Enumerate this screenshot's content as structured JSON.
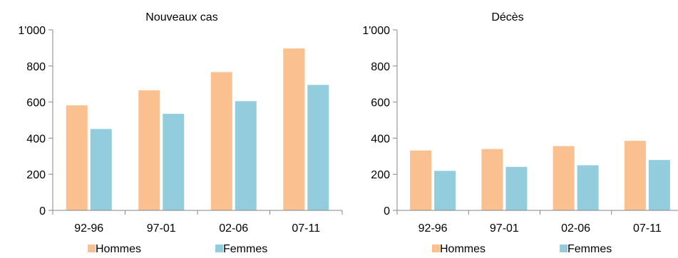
{
  "chart_data": [
    {
      "type": "bar",
      "title": "Nouveaux cas",
      "categories": [
        "92-96",
        "97-01",
        "02-06",
        "07-11"
      ],
      "series": [
        {
          "name": "Hommes",
          "values": [
            582,
            665,
            766,
            897
          ]
        },
        {
          "name": "Femmes",
          "values": [
            451,
            535,
            605,
            695
          ]
        }
      ],
      "ylim": [
        0,
        1000
      ],
      "yticks": [
        "0",
        "200",
        "400",
        "600",
        "800",
        "1'000"
      ],
      "colors": [
        "#FAC090",
        "#93CDDD"
      ],
      "legend": "bottom",
      "grid": false
    },
    {
      "type": "bar",
      "title": "Décès",
      "categories": [
        "92-96",
        "97-01",
        "02-06",
        "07-11"
      ],
      "series": [
        {
          "name": "Hommes",
          "values": [
            332,
            340,
            356,
            385
          ]
        },
        {
          "name": "Femmes",
          "values": [
            219,
            241,
            250,
            279
          ]
        }
      ],
      "ylim": [
        0,
        1000
      ],
      "yticks": [
        "0",
        "200",
        "400",
        "600",
        "800",
        "1'000"
      ],
      "colors": [
        "#FAC090",
        "#93CDDD"
      ],
      "legend": "bottom",
      "grid": false
    }
  ]
}
